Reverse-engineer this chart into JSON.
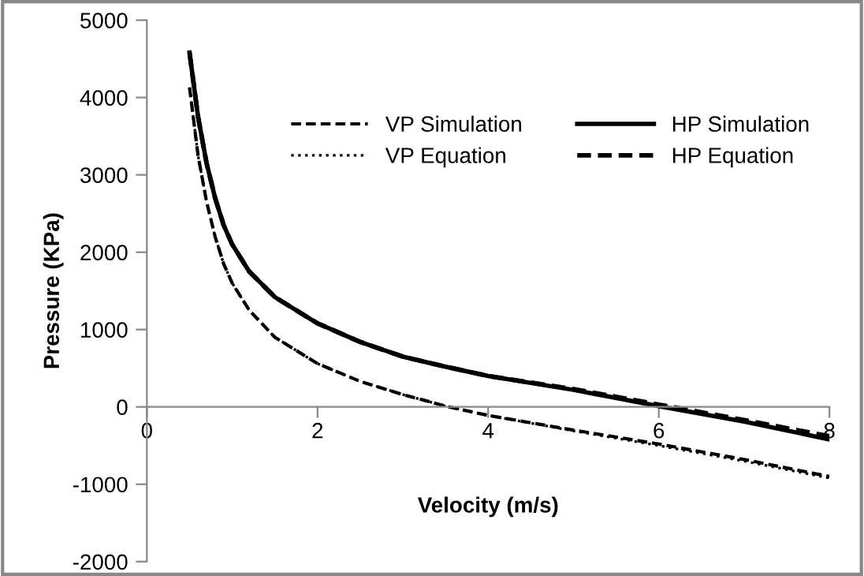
{
  "chart_data": {
    "type": "line",
    "xlabel": "Velocity (m/s)",
    "ylabel": "Pressure (KPa)",
    "xlim": [
      0,
      8
    ],
    "xticks": [
      0,
      2,
      4,
      6,
      8
    ],
    "ylim": [
      -2000,
      5000
    ],
    "yticks": [
      -2000,
      -1000,
      0,
      1000,
      2000,
      3000,
      4000,
      5000
    ],
    "grid": false,
    "legend": "top right",
    "marker": "none",
    "x": [
      0.5,
      0.6,
      0.7,
      0.8,
      0.9,
      1.0,
      1.2,
      1.5,
      2,
      2.5,
      3,
      3.5,
      4,
      5,
      6,
      7,
      8
    ],
    "series": [
      {
        "name": "VP Simulation",
        "color": "#000000",
        "line_style": "dashed",
        "values": [
          4130,
          3250,
          2650,
          2200,
          1850,
          1600,
          1250,
          900,
          560,
          330,
          160,
          10,
          -110,
          -300,
          -480,
          -680,
          -900
        ]
      },
      {
        "name": "VP Equation",
        "color": "#000000",
        "line_style": "dotted",
        "values": [
          4130,
          3250,
          2650,
          2200,
          1850,
          1600,
          1250,
          900,
          560,
          330,
          160,
          10,
          -110,
          -310,
          -500,
          -700,
          -920
        ]
      },
      {
        "name": "HP Simulation",
        "color": "#000000",
        "line_style": "solid",
        "values": [
          4580,
          3750,
          3150,
          2700,
          2350,
          2100,
          1750,
          1420,
          1080,
          840,
          650,
          520,
          400,
          220,
          10,
          -190,
          -420
        ]
      },
      {
        "name": "HP Equation",
        "color": "#000000",
        "line_style": "dashed",
        "values": [
          4580,
          3750,
          3150,
          2700,
          2350,
          2100,
          1750,
          1420,
          1080,
          840,
          650,
          520,
          400,
          230,
          30,
          -170,
          -380
        ]
      }
    ]
  }
}
